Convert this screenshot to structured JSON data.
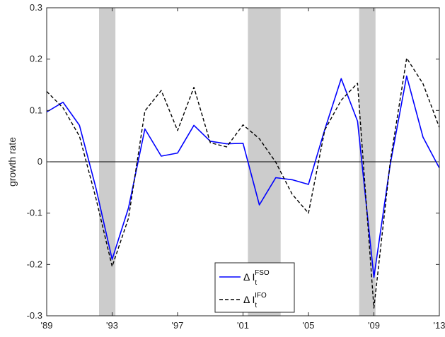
{
  "chart_data": {
    "type": "line",
    "ylabel": "growth rate",
    "xlim": [
      1989,
      2013
    ],
    "ylim": [
      -0.3,
      0.3
    ],
    "xticks": [
      {
        "value": 1989,
        "label": "'89"
      },
      {
        "value": 1993,
        "label": "'93"
      },
      {
        "value": 1997,
        "label": "'97"
      },
      {
        "value": 2001,
        "label": "'01"
      },
      {
        "value": 2005,
        "label": "'05"
      },
      {
        "value": 2009,
        "label": "'09"
      },
      {
        "value": 2013,
        "label": "'13"
      }
    ],
    "yticks": [
      {
        "value": 0.3,
        "label": "0.3"
      },
      {
        "value": 0.2,
        "label": "0.2"
      },
      {
        "value": 0.1,
        "label": "0.1"
      },
      {
        "value": 0,
        "label": "0"
      },
      {
        "value": -0.1,
        "label": "-0.1"
      },
      {
        "value": -0.2,
        "label": "-0.2"
      },
      {
        "value": -0.3,
        "label": "-0.3"
      }
    ],
    "recession_shading": [
      [
        1992.2,
        1993.2
      ],
      [
        2001.3,
        2003.3
      ],
      [
        2008.1,
        2009.1
      ]
    ],
    "zero_line": true,
    "legend_placement": "bottom-center",
    "series": [
      {
        "label": {
          "prefix": "Δ I",
          "subscript": "t",
          "superscript": "FSO"
        },
        "color": "#0000ff",
        "style": "solid",
        "points": [
          [
            1989,
            0.097
          ],
          [
            1990,
            0.116
          ],
          [
            1991,
            0.071
          ],
          [
            1992,
            -0.05
          ],
          [
            1993,
            -0.19
          ],
          [
            1994,
            -0.09
          ],
          [
            1995,
            0.064
          ],
          [
            1996,
            0.011
          ],
          [
            1997,
            0.017
          ],
          [
            1998,
            0.071
          ],
          [
            1999,
            0.04
          ],
          [
            2000,
            0.035
          ],
          [
            2001,
            0.036
          ],
          [
            2002,
            -0.084
          ],
          [
            2003,
            -0.031
          ],
          [
            2004,
            -0.035
          ],
          [
            2005,
            -0.044
          ],
          [
            2006,
            0.063
          ],
          [
            2007,
            0.162
          ],
          [
            2008,
            0.079
          ],
          [
            2009,
            -0.225
          ],
          [
            2010,
            -0.005
          ],
          [
            2011,
            0.167
          ],
          [
            2012,
            0.048
          ],
          [
            2013,
            -0.012
          ]
        ]
      },
      {
        "label": {
          "prefix": "Δ I",
          "subscript": "t",
          "superscript": "IFO"
        },
        "color": "#000000",
        "style": "dashed",
        "points": [
          [
            1989,
            0.137
          ],
          [
            1990,
            0.105
          ],
          [
            1991,
            0.05
          ],
          [
            1992,
            -0.07
          ],
          [
            1993,
            -0.204
          ],
          [
            1994,
            -0.11
          ],
          [
            1995,
            0.099
          ],
          [
            1996,
            0.139
          ],
          [
            1997,
            0.061
          ],
          [
            1998,
            0.145
          ],
          [
            1999,
            0.037
          ],
          [
            2000,
            0.029
          ],
          [
            2001,
            0.072
          ],
          [
            2002,
            0.045
          ],
          [
            2003,
            -0.001
          ],
          [
            2004,
            -0.063
          ],
          [
            2005,
            -0.1
          ],
          [
            2006,
            0.062
          ],
          [
            2007,
            0.12
          ],
          [
            2008,
            0.153
          ],
          [
            2009,
            -0.285
          ],
          [
            2010,
            0.0
          ],
          [
            2011,
            0.202
          ],
          [
            2012,
            0.152
          ],
          [
            2013,
            0.067
          ]
        ]
      }
    ]
  }
}
